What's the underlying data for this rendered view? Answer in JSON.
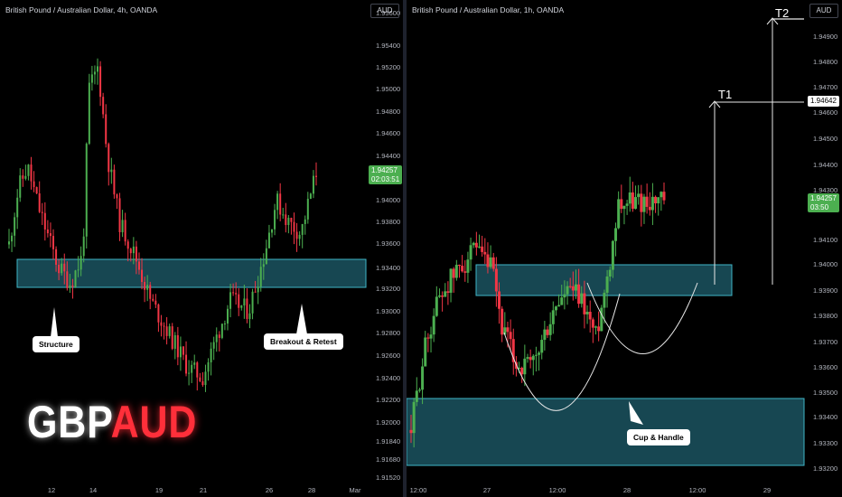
{
  "left": {
    "title": "British Pound / Australian Dollar, 4h, OANDA",
    "currency": "AUD",
    "y_labels": [
      "1.95600",
      "1.95400",
      "1.95200",
      "1.95000",
      "1.94800",
      "1.94600",
      "1.94400",
      "1.94000",
      "1.93800",
      "1.93600",
      "1.93400",
      "1.93200",
      "1.93000",
      "1.92800",
      "1.92600",
      "1.92400",
      "1.92200",
      "1.92000",
      "1.91840",
      "1.91680",
      "1.91520"
    ],
    "x_labels": [
      "12",
      "14",
      "19",
      "21",
      "26",
      "28",
      "Mar"
    ],
    "price": "1.94257",
    "countdown": "02:03:51",
    "callout_structure": "Structure",
    "callout_breakout": "Breakout & Retest",
    "brand_a": "GBP",
    "brand_b": "AUD"
  },
  "right": {
    "title": "British Pound / Australian Dollar, 1h, OANDA",
    "currency": "AUD",
    "y_labels": [
      "1.94900",
      "1.94800",
      "1.94700",
      "1.94600",
      "1.94500",
      "1.94400",
      "1.94300",
      "1.94100",
      "1.94000",
      "1.93900",
      "1.93800",
      "1.93700",
      "1.93600",
      "1.93500",
      "1.93400",
      "1.93300",
      "1.93200"
    ],
    "x_labels": [
      "12:00",
      "27",
      "12:00",
      "28",
      "12:00",
      "29"
    ],
    "price": "1.94257",
    "countdown": "03:50",
    "target_price": "1.94642",
    "t1": "T1",
    "t2": "T2",
    "callout_cup": "Cup & Handle"
  },
  "colors": {
    "up": "#4caf50",
    "down": "#f23645",
    "zone": "#1f5f6e",
    "zone_border": "#3fb6c7"
  },
  "chart_data": [
    {
      "type": "candlestick",
      "title": "British Pound / Australian Dollar, 4h, OANDA",
      "ylim": [
        1.9152,
        1.9565
      ],
      "x_ticks": [
        "12",
        "14",
        "19",
        "21",
        "26",
        "28",
        "Mar"
      ],
      "zone": [
        1.9322,
        1.9348
      ],
      "last_price": 1.94257,
      "series": [
        {
          "close_path": [
            1.935,
            1.944,
            1.937,
            1.935,
            1.932,
            1.936,
            1.952,
            1.944,
            1.938,
            1.936,
            1.932,
            1.929,
            1.926,
            1.924,
            1.927,
            1.929,
            1.931,
            1.933,
            1.93,
            1.935,
            1.939,
            1.937,
            1.942
          ]
        }
      ]
    },
    {
      "type": "candlestick",
      "title": "British Pound / Australian Dollar, 1h, OANDA",
      "ylim": [
        1.9317,
        1.95
      ],
      "x_ticks": [
        "12:00",
        "27",
        "12:00",
        "28",
        "12:00",
        "29"
      ],
      "zones": [
        [
          1.9391,
          1.94
        ],
        [
          1.9323,
          1.9349
        ]
      ],
      "last_price": 1.94257,
      "targets": {
        "T1": 1.94642,
        "T2": 1.95
      }
    }
  ]
}
